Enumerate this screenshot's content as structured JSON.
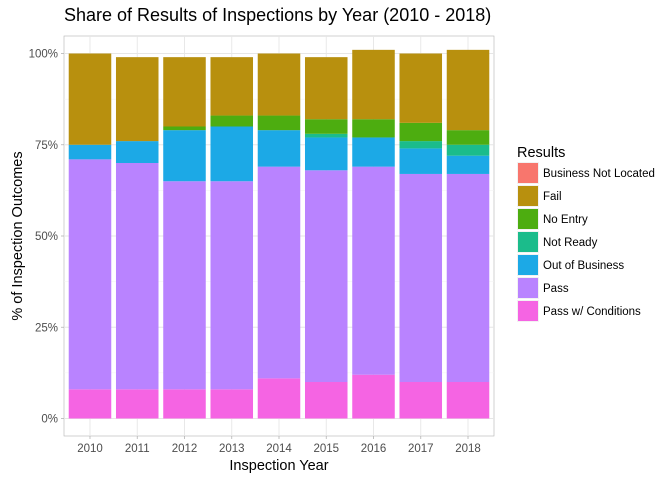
{
  "chart_data": {
    "type": "bar",
    "stacked": true,
    "title": "Share of Results of Inspections by Year (2010 - 2018)",
    "xlabel": "Inspection Year",
    "ylabel": "% of Inspection Outcomes",
    "categories": [
      "2010",
      "2011",
      "2012",
      "2013",
      "2014",
      "2015",
      "2016",
      "2017",
      "2018"
    ],
    "y_ticks": [
      {
        "value": 0,
        "label": "0%"
      },
      {
        "value": 0.25,
        "label": "25%"
      },
      {
        "value": 0.5,
        "label": "50%"
      },
      {
        "value": 0.75,
        "label": "75%"
      },
      {
        "value": 1.0,
        "label": "100%"
      }
    ],
    "ylim": [
      0,
      1.02
    ],
    "grid": true,
    "legend_position": "right",
    "legend_title": "Results",
    "series": [
      {
        "name": "Pass w/ Conditions",
        "color": "#F564E3",
        "values": [
          0.08,
          0.08,
          0.08,
          0.08,
          0.11,
          0.1,
          0.12,
          0.1,
          0.1
        ]
      },
      {
        "name": "Pass",
        "color": "#B983FF",
        "values": [
          0.63,
          0.62,
          0.57,
          0.57,
          0.58,
          0.58,
          0.57,
          0.57,
          0.57
        ]
      },
      {
        "name": "Out of Business",
        "color": "#1CA9E6",
        "values": [
          0.04,
          0.06,
          0.14,
          0.15,
          0.1,
          0.09,
          0.08,
          0.07,
          0.05
        ]
      },
      {
        "name": "Not Ready",
        "color": "#1BBC8B",
        "values": [
          0.0,
          0.0,
          0.0,
          0.0,
          0.0,
          0.01,
          0.0,
          0.02,
          0.03
        ]
      },
      {
        "name": "No Entry",
        "color": "#4DAD10",
        "values": [
          0.0,
          0.0,
          0.01,
          0.03,
          0.04,
          0.04,
          0.05,
          0.05,
          0.04
        ]
      },
      {
        "name": "Fail",
        "color": "#B8900E",
        "values": [
          0.25,
          0.23,
          0.19,
          0.16,
          0.17,
          0.17,
          0.19,
          0.19,
          0.22
        ]
      },
      {
        "name": "Business Not Located",
        "color": "#F8766D",
        "values": [
          0,
          0,
          0,
          0,
          0,
          0,
          0,
          0,
          0
        ]
      }
    ],
    "legend_order": [
      "Business Not Located",
      "Fail",
      "No Entry",
      "Not Ready",
      "Out of Business",
      "Pass",
      "Pass w/ Conditions"
    ]
  }
}
